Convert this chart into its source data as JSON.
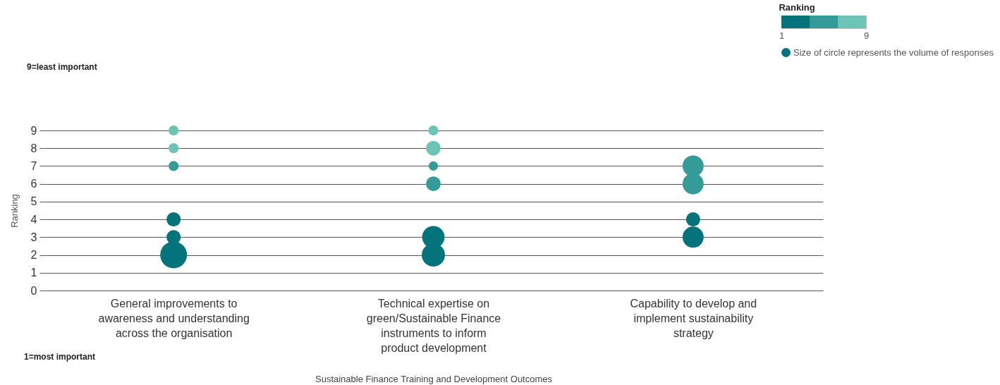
{
  "chart_data": {
    "type": "bubble",
    "xlabel": "Sustainable Finance Training and Development Outcomes",
    "ylabel": "Ranking",
    "clabel": "Ranking",
    "categories": [
      "General improvements to awareness and understanding across the organisation",
      "Technical expertise on green/Sustainable Finance instruments to inform product development",
      "Capability to develop and implement sustainability strategy"
    ],
    "series": [
      {
        "x": [
          "General improvements to awareness and understanding across the organisation",
          "General improvements to awareness and understanding across the organisation",
          "General improvements to awareness and understanding across the organisation",
          "General improvements to awareness and understanding across the organisation",
          "General improvements to awareness and understanding across the organisation",
          "General improvements to awareness and understanding across the organisation",
          "Technical expertise on green/Sustainable Finance instruments to inform product development",
          "Technical expertise on green/Sustainable Finance instruments to inform product development",
          "Technical expertise on green/Sustainable Finance instruments to inform product development",
          "Technical expertise on green/Sustainable Finance instruments to inform product development",
          "Technical expertise on green/Sustainable Finance instruments to inform product development",
          "Technical expertise on green/Sustainable Finance instruments to inform product development",
          "Capability to develop and implement sustainability strategy",
          "Capability to develop and implement sustainability strategy",
          "Capability to develop and implement sustainability strategy",
          "Capability to develop and implement sustainability strategy"
        ],
        "values": [
          9,
          8,
          7,
          4,
          3,
          2,
          9,
          8,
          7,
          6,
          3,
          2,
          7,
          6,
          4,
          3
        ],
        "sizes": [
          0.14,
          0.14,
          0.14,
          0.28,
          0.28,
          1,
          0.14,
          0.3,
          0.12,
          0.3,
          0.7,
          0.75,
          0.62,
          0.62,
          0.28,
          0.62
        ],
        "colors": [
          "#6cc4b4",
          "#6cc4b4",
          "#359b98",
          "#05737b",
          "#05737b",
          "#05737b",
          "#6cc4b4",
          "#6cc4b4",
          "#359b98",
          "#359b98",
          "#05737b",
          "#05737b",
          "#359b98",
          "#359b98",
          "#05737b",
          "#05737b"
        ]
      }
    ],
    "ylim": [
      0,
      9
    ],
    "yticks": [
      0,
      1,
      2,
      3,
      4,
      5,
      6,
      7,
      8,
      9
    ],
    "grid": "y",
    "clim": [
      1,
      9
    ],
    "cticks": [
      1,
      9
    ],
    "annotations": [
      "9=least important",
      "1=most important",
      "Size of circle represents the volume of responses"
    ]
  }
}
